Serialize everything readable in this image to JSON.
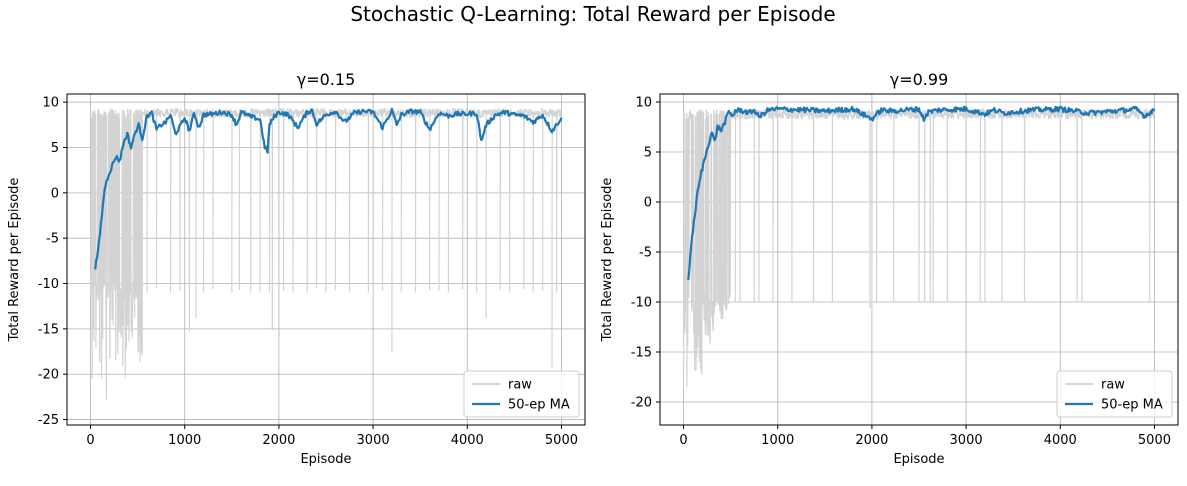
{
  "figure": {
    "title": "Stochastic Q-Learning: Total Reward per Episode"
  },
  "colors": {
    "raw": "#d3d3d3",
    "ma": "#1f77b4",
    "grid": "#b0b0b0",
    "axis": "#000000"
  },
  "chart_data": [
    {
      "type": "line",
      "title": "γ=0.15",
      "xlabel": "Episode",
      "ylabel": "Total Reward per Episode",
      "xlim": [
        -250,
        5250
      ],
      "ylim": [
        -25.6,
        10.9
      ],
      "xticks": [
        0,
        1000,
        2000,
        3000,
        4000,
        5000
      ],
      "yticks": [
        -25,
        -20,
        -15,
        -10,
        -5,
        0,
        5,
        10
      ],
      "grid": true,
      "legend_position": "lower-right",
      "series": [
        {
          "name": "raw",
          "style": "raw_noise",
          "ceiling": 9.3,
          "floor": -10.8,
          "early_phase": {
            "x": [
              0,
              550
            ],
            "min_levels": [
              -22,
              -23.8,
              -17.5,
              -20,
              -18
            ]
          },
          "drops": [
            [
              600,
              -11
            ],
            [
              700,
              -10.5
            ],
            [
              850,
              -11
            ],
            [
              950,
              -10.8
            ],
            [
              1050,
              -15.3
            ],
            [
              1120,
              -13.8
            ],
            [
              1200,
              -11
            ],
            [
              1300,
              -10.6
            ],
            [
              1500,
              -11
            ],
            [
              1580,
              -10.7
            ],
            [
              1700,
              -11
            ],
            [
              1800,
              -10.9
            ],
            [
              1900,
              -11
            ],
            [
              1930,
              -15.2
            ],
            [
              2050,
              -10.8
            ],
            [
              2150,
              -10.9
            ],
            [
              2300,
              -11
            ],
            [
              2400,
              -10.5
            ],
            [
              2500,
              -11
            ],
            [
              2600,
              -10.7
            ],
            [
              2750,
              -10.9
            ],
            [
              2950,
              -11
            ],
            [
              3100,
              -10.8
            ],
            [
              3200,
              -17.6
            ],
            [
              3300,
              -10.9
            ],
            [
              3450,
              -11
            ],
            [
              3600,
              -10.7
            ],
            [
              3700,
              -10.8
            ],
            [
              3800,
              -11
            ],
            [
              3950,
              -10.6
            ],
            [
              4100,
              -11
            ],
            [
              4200,
              -13.8
            ],
            [
              4350,
              -10.7
            ],
            [
              4450,
              -11
            ],
            [
              4600,
              -10.6
            ],
            [
              4700,
              -11
            ],
            [
              4800,
              -10.8
            ],
            [
              4900,
              -19.3
            ],
            [
              4950,
              -11
            ]
          ]
        },
        {
          "name": "50-ep MA",
          "x": [
            50,
            80,
            110,
            150,
            190,
            230,
            270,
            310,
            350,
            390,
            430,
            470,
            510,
            550,
            600,
            650,
            700,
            750,
            800,
            850,
            900,
            950,
            1000,
            1050,
            1100,
            1150,
            1200,
            1300,
            1400,
            1500,
            1550,
            1600,
            1700,
            1800,
            1850,
            1880,
            1900,
            1950,
            2000,
            2100,
            2200,
            2300,
            2350,
            2400,
            2500,
            2600,
            2700,
            2800,
            2900,
            3000,
            3100,
            3200,
            3250,
            3300,
            3400,
            3500,
            3600,
            3700,
            3800,
            3900,
            4000,
            4100,
            4150,
            4200,
            4300,
            4400,
            4500,
            4600,
            4700,
            4800,
            4900,
            5000
          ],
          "y": [
            -8.2,
            -6.5,
            -3.5,
            0.5,
            2.0,
            3.0,
            4.0,
            3.5,
            5.5,
            6.5,
            5.0,
            6.5,
            7.5,
            6.0,
            8.5,
            8.8,
            7.0,
            7.5,
            7.8,
            8.6,
            6.5,
            7.3,
            8.3,
            6.8,
            8.8,
            7.2,
            8.6,
            8.7,
            8.9,
            8.6,
            7.5,
            8.9,
            8.4,
            8.1,
            5.0,
            4.6,
            7.5,
            8.4,
            8.9,
            8.6,
            7.2,
            8.9,
            9.1,
            7.6,
            8.6,
            9.0,
            7.8,
            8.8,
            9.0,
            8.9,
            7.2,
            9.1,
            7.5,
            8.6,
            9.0,
            8.9,
            7.0,
            8.8,
            8.5,
            8.7,
            8.7,
            8.8,
            5.7,
            7.5,
            8.6,
            8.9,
            8.6,
            8.5,
            7.8,
            8.6,
            6.8,
            8.3
          ]
        }
      ]
    },
    {
      "type": "line",
      "title": "γ=0.99",
      "xlabel": "Episode",
      "ylabel": "Total Reward per Episode",
      "xlim": [
        -250,
        5250
      ],
      "ylim": [
        -22.3,
        10.8
      ],
      "xticks": [
        0,
        1000,
        2000,
        3000,
        4000,
        5000
      ],
      "yticks": [
        -20,
        -15,
        -10,
        -5,
        0,
        5,
        10
      ],
      "grid": true,
      "legend_position": "lower-right",
      "series": [
        {
          "name": "raw",
          "style": "raw_noise",
          "ceiling": 9.3,
          "floor": -10.0,
          "early_phase": {
            "x": [
              0,
              500
            ],
            "min_levels": [
              -20,
              -17.8,
              -14.2,
              -11.5,
              -10.5
            ]
          },
          "drops": [
            [
              550,
              -10
            ],
            [
              600,
              -10
            ],
            [
              750,
              -10
            ],
            [
              800,
              -10
            ],
            [
              950,
              -10
            ],
            [
              1150,
              -10
            ],
            [
              1380,
              -10
            ],
            [
              1580,
              -10
            ],
            [
              1980,
              -10.6
            ],
            [
              2000,
              -10.8
            ],
            [
              2050,
              -10
            ],
            [
              2230,
              -10
            ],
            [
              2500,
              -10
            ],
            [
              2560,
              -10
            ],
            [
              2620,
              -10
            ],
            [
              2650,
              -10
            ],
            [
              2800,
              -10
            ],
            [
              3150,
              -10
            ],
            [
              3200,
              -10
            ],
            [
              3380,
              -10
            ],
            [
              3620,
              -10
            ],
            [
              4180,
              -10
            ],
            [
              4230,
              -10
            ],
            [
              4950,
              -10
            ]
          ]
        },
        {
          "name": "50-ep MA",
          "x": [
            50,
            80,
            110,
            150,
            190,
            230,
            270,
            300,
            330,
            360,
            400,
            440,
            480,
            520,
            550,
            600,
            700,
            750,
            800,
            900,
            1000,
            1300,
            1500,
            1800,
            2000,
            2100,
            2200,
            2500,
            2550,
            2600,
            2700,
            3000,
            3200,
            3300,
            3400,
            3700,
            4000,
            4300,
            4700,
            4800,
            4900,
            5000
          ],
          "y": [
            -7.8,
            -4.5,
            -2.0,
            1.0,
            3.0,
            4.5,
            6.0,
            7.0,
            6.0,
            7.5,
            7.2,
            8.0,
            9.0,
            8.6,
            9.1,
            9.2,
            8.9,
            9.2,
            8.5,
            9.2,
            9.3,
            9.2,
            9.1,
            9.3,
            8.3,
            9.2,
            9.1,
            9.3,
            8.3,
            9.0,
            9.2,
            9.3,
            8.8,
            9.2,
            8.9,
            9.2,
            9.3,
            8.9,
            9.2,
            9.3,
            8.6,
            9.3
          ]
        }
      ]
    }
  ]
}
